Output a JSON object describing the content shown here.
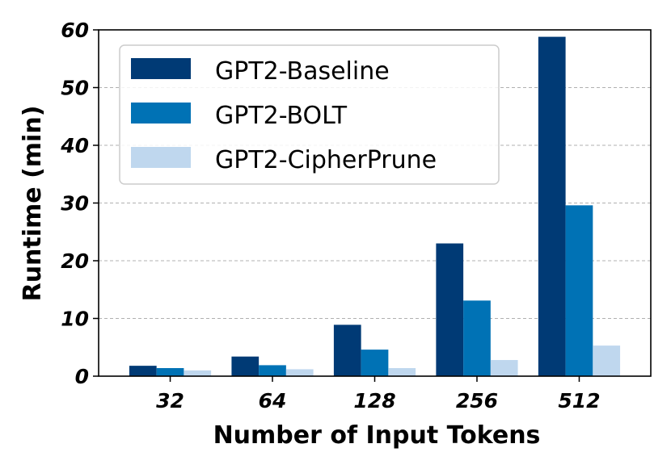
{
  "chart_data": {
    "type": "bar",
    "categories": [
      "32",
      "64",
      "128",
      "256",
      "512"
    ],
    "series": [
      {
        "name": "GPT2-Baseline",
        "color": "#003a75",
        "values": [
          1.8,
          3.4,
          8.9,
          23.0,
          58.8
        ]
      },
      {
        "name": "GPT2-BOLT",
        "color": "#0072b5",
        "values": [
          1.4,
          1.9,
          4.6,
          13.1,
          29.6
        ]
      },
      {
        "name": "GPT2-CipherPrune",
        "color": "#bfd7ee",
        "values": [
          1.0,
          1.2,
          1.4,
          2.8,
          5.3
        ]
      }
    ],
    "xlabel": "Number of Input Tokens",
    "ylabel": "Runtime (min)",
    "ylim": [
      0,
      60
    ],
    "yticks": [
      "0",
      "10",
      "20",
      "30",
      "40",
      "50",
      "60"
    ],
    "grid": "horizontal dashed",
    "legend_position": "top-left"
  }
}
